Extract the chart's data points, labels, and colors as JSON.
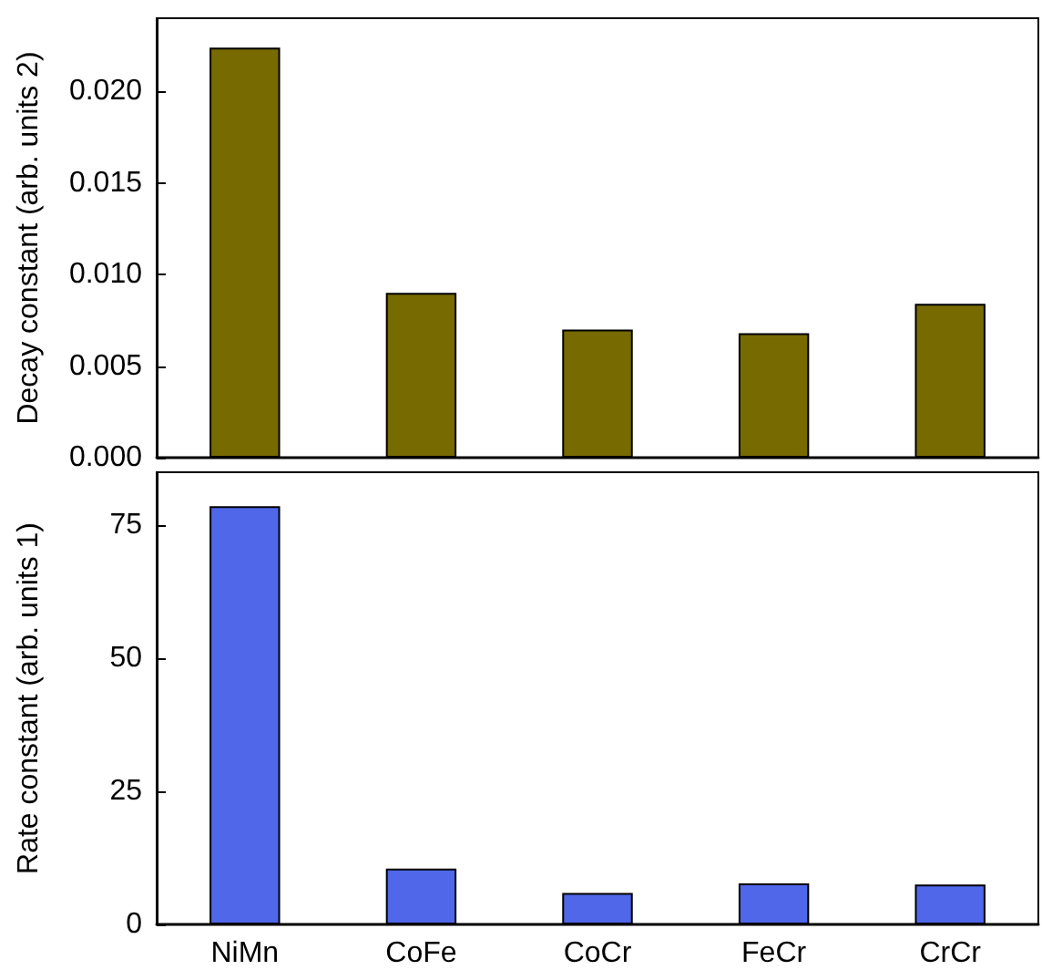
{
  "chart_data": [
    {
      "type": "bar",
      "ylabel": "Decay constant (arb. units 2)",
      "categories": [
        null,
        null,
        null,
        null,
        null
      ],
      "values": [
        0.0224,
        0.009,
        0.007,
        0.0068,
        0.0084
      ],
      "color": "#766a00",
      "ylim": [
        0,
        0.024
      ],
      "yticks": [
        {
          "value": 0,
          "label": "0.000"
        },
        {
          "value": 0.005,
          "label": "0.005"
        },
        {
          "value": 0.01,
          "label": "0.010"
        },
        {
          "value": 0.015,
          "label": "0.015"
        },
        {
          "value": 0.02,
          "label": "0.020"
        }
      ],
      "tick_labels": "y",
      "grid": false
    },
    {
      "type": "bar",
      "ylabel": "Rate constant (arb. units 1)",
      "categories": [
        "NiMn",
        "CoFe",
        "CoCr",
        "FeCr",
        "CrCr"
      ],
      "values": [
        78.6,
        10.5,
        5.9,
        7.7,
        7.5
      ],
      "color": "#4f67e8",
      "ylim": [
        0,
        85
      ],
      "yticks": [
        0,
        25,
        50,
        75
      ],
      "grid": false
    }
  ]
}
